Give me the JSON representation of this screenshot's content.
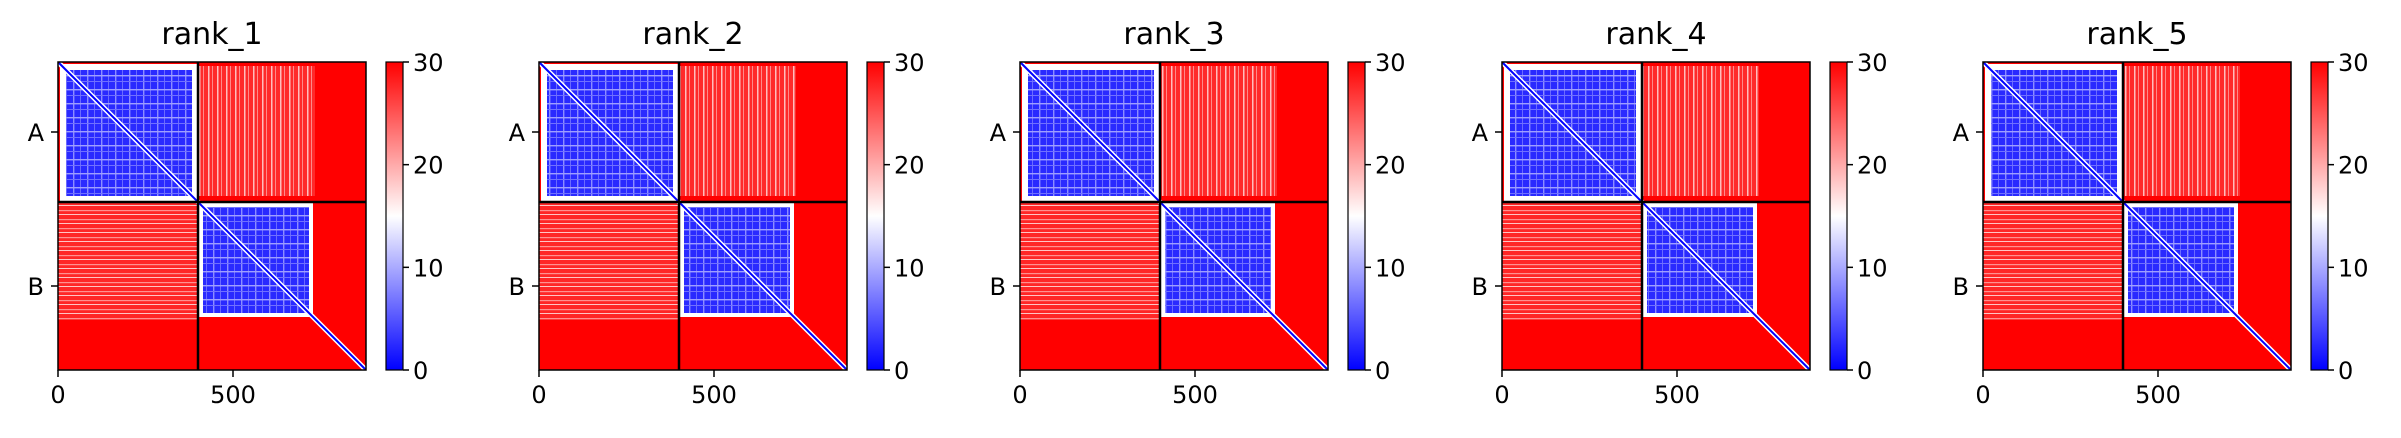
{
  "chart_data": [
    {
      "type": "heatmap",
      "title": "rank_1",
      "x_ticks": [
        0,
        500
      ],
      "y_ticks": [
        "A",
        "B"
      ],
      "chains": [
        {
          "name": "A",
          "length": 400
        },
        {
          "name": "B",
          "length": 480
        }
      ],
      "colorbar": {
        "range": [
          0,
          30
        ],
        "ticks": [
          0,
          10,
          20,
          30
        ],
        "colormap": "bwr"
      }
    },
    {
      "type": "heatmap",
      "title": "rank_2",
      "x_ticks": [
        0,
        500
      ],
      "y_ticks": [
        "A",
        "B"
      ],
      "chains": [
        {
          "name": "A",
          "length": 400
        },
        {
          "name": "B",
          "length": 480
        }
      ],
      "colorbar": {
        "range": [
          0,
          30
        ],
        "ticks": [
          0,
          10,
          20,
          30
        ],
        "colormap": "bwr"
      }
    },
    {
      "type": "heatmap",
      "title": "rank_3",
      "x_ticks": [
        0,
        500
      ],
      "y_ticks": [
        "A",
        "B"
      ],
      "chains": [
        {
          "name": "A",
          "length": 400
        },
        {
          "name": "B",
          "length": 480
        }
      ],
      "colorbar": {
        "range": [
          0,
          30
        ],
        "ticks": [
          0,
          10,
          20,
          30
        ],
        "colormap": "bwr"
      }
    },
    {
      "type": "heatmap",
      "title": "rank_4",
      "x_ticks": [
        0,
        500
      ],
      "y_ticks": [
        "A",
        "B"
      ],
      "chains": [
        {
          "name": "A",
          "length": 400
        },
        {
          "name": "B",
          "length": 480
        }
      ],
      "colorbar": {
        "range": [
          0,
          30
        ],
        "ticks": [
          0,
          10,
          20,
          30
        ],
        "colormap": "bwr"
      }
    },
    {
      "type": "heatmap",
      "title": "rank_5",
      "x_ticks": [
        0,
        500
      ],
      "y_ticks": [
        "A",
        "B"
      ],
      "chains": [
        {
          "name": "A",
          "length": 400
        },
        {
          "name": "B",
          "length": 480
        }
      ],
      "colorbar": {
        "range": [
          0,
          30
        ],
        "ticks": [
          0,
          10,
          20,
          30
        ],
        "colormap": "bwr"
      }
    }
  ],
  "colors": {
    "low": "#0000ff",
    "mid": "#ffffff",
    "high": "#ff0000",
    "frame": "#000000"
  }
}
